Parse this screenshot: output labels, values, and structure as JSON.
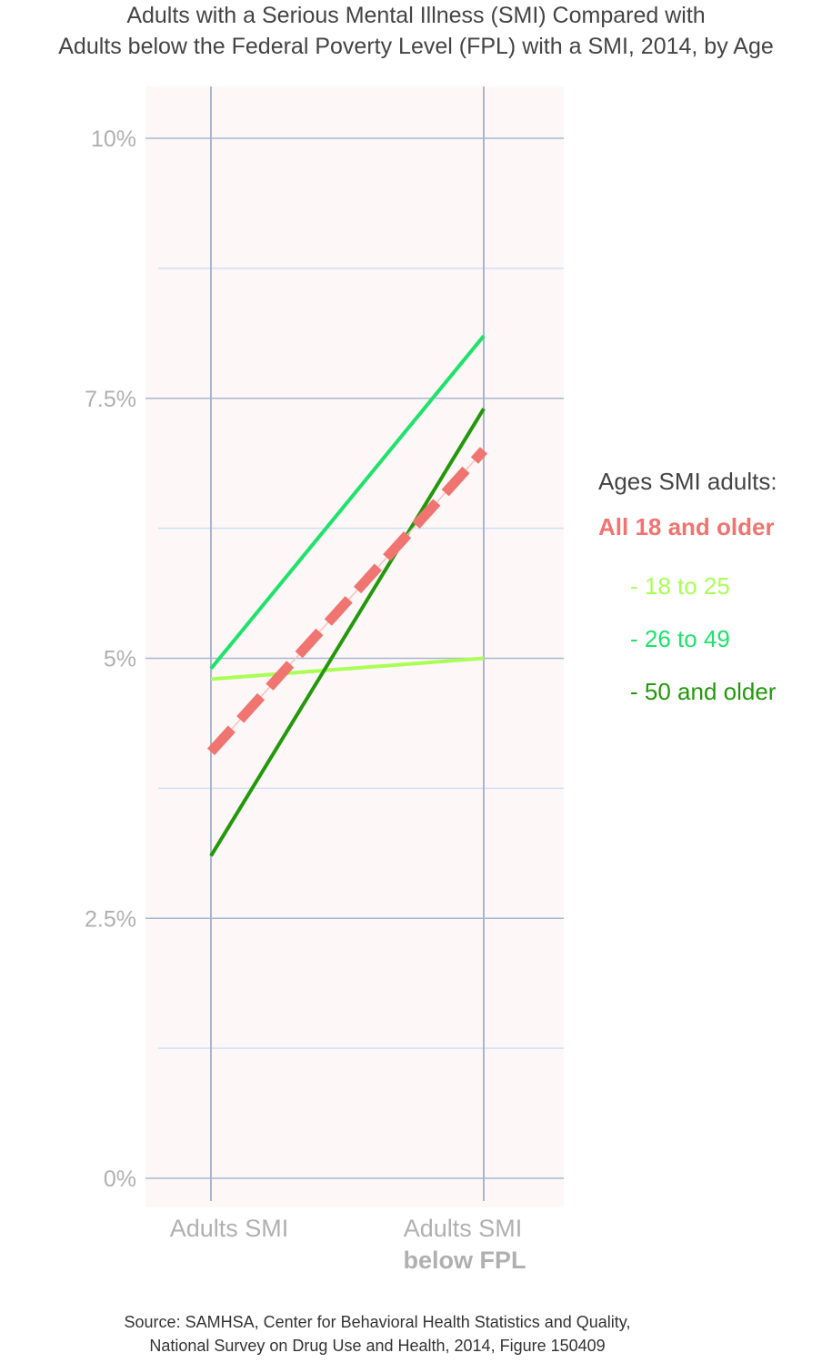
{
  "title": {
    "line1": "Adults with a Serious Mental Illness (SMI) Compared with",
    "line2": "Adults below the Federal Poverty Level (FPL) with a SMI, 2014, by Age"
  },
  "source": {
    "line1": "Source: SAMHSA, Center for Behavioral Health Statistics and Quality,",
    "line2": "National Survey on Drug Use and Health, 2014, Figure 150409"
  },
  "colors": {
    "background_panel": "#fdf7f7",
    "gridline_major": "#a9b6d0",
    "gridline_minor": "#cfe0f4",
    "title_text": "#444444",
    "axis_text": "#b0b0b0"
  },
  "legend": {
    "heading": "Ages SMI adults:",
    "placement": "right"
  },
  "chart_data": {
    "type": "line",
    "categories": [
      "Adults SMI",
      "Adults SMI below FPL"
    ],
    "category_labels": [
      {
        "line1": "Adults SMI",
        "line2": ""
      },
      {
        "line1": "Adults SMI",
        "line2": "below FPL"
      }
    ],
    "ylim": [
      0,
      10
    ],
    "yticks": [
      {
        "value": 0,
        "label": "0%"
      },
      {
        "value": 2.5,
        "label": "2.5%"
      },
      {
        "value": 5,
        "label": "5%"
      },
      {
        "value": 7.5,
        "label": "7.5%"
      },
      {
        "value": 10,
        "label": "10%"
      }
    ],
    "minor_gridlines": [
      1.25,
      3.75,
      6.25,
      8.75
    ],
    "grid": true,
    "series": [
      {
        "name": "All 18 and older",
        "legend_label": "All 18 and older",
        "values": [
          4.1,
          7.0
        ],
        "color": "#f07470",
        "dashed": true
      },
      {
        "name": "18 to 25",
        "legend_label": "- 18 to 25",
        "values": [
          4.8,
          5.0
        ],
        "color": "#aaff55",
        "dashed": false
      },
      {
        "name": "26 to 49",
        "legend_label": "- 26 to 49",
        "values": [
          4.9,
          8.1
        ],
        "color": "#1ee36b",
        "dashed": false
      },
      {
        "name": "50 and older",
        "legend_label": "- 50 and older",
        "values": [
          3.1,
          7.4
        ],
        "color": "#22990a",
        "dashed": false
      }
    ]
  }
}
